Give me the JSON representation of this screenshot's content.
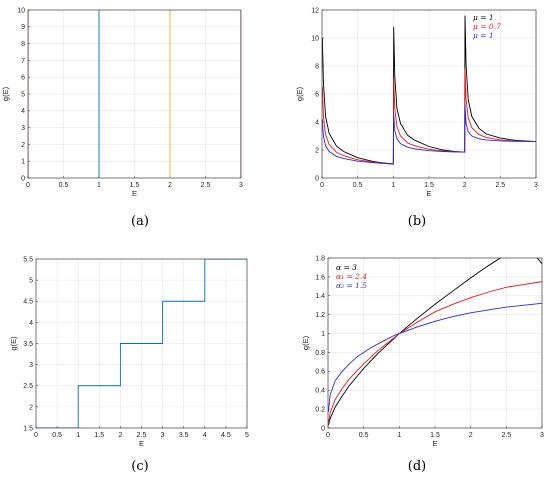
{
  "charts": [
    {
      "label_text": "(a)"
    },
    {
      "label_text": "(b)"
    },
    {
      "label_text": "(c)"
    },
    {
      "label_text": "(d)"
    }
  ],
  "chart_data": [
    {
      "type": "line",
      "panel": "(a)",
      "title": "",
      "xlabel": "E",
      "ylabel": "g(E)",
      "xlim": [
        0,
        3
      ],
      "ylim": [
        0,
        10
      ],
      "xticks": [
        "0",
        "0.5",
        "1",
        "1.5",
        "2",
        "2.5",
        "3"
      ],
      "yticks": [
        "0",
        "1",
        "2",
        "3",
        "4",
        "5",
        "6",
        "7",
        "8",
        "9",
        "10"
      ],
      "grid": true,
      "series": [
        {
          "color": "#d95319",
          "x": [
            0,
            0
          ],
          "y": [
            0,
            10
          ]
        },
        {
          "color": "#0072bd",
          "x": [
            1,
            1
          ],
          "y": [
            0,
            10
          ]
        },
        {
          "color": "#edb120",
          "x": [
            2,
            2
          ],
          "y": [
            0,
            10
          ]
        },
        {
          "color": "#7e2f8e",
          "x": [
            3,
            3
          ],
          "y": [
            0,
            10
          ]
        }
      ]
    },
    {
      "type": "line",
      "panel": "(b)",
      "title": "",
      "xlabel": "E",
      "ylabel": "g(E)",
      "xlim": [
        0,
        3
      ],
      "ylim": [
        0,
        12
      ],
      "xticks": [
        "0",
        "0.5",
        "1",
        "1.5",
        "2",
        "2.5",
        "3"
      ],
      "yticks": [
        "0",
        "2",
        "4",
        "6",
        "8",
        "10",
        "12"
      ],
      "grid": true,
      "legend_position": "top-right",
      "series": [
        {
          "name": "μ = 1",
          "color": "#000000",
          "x": [
            0.005,
            0.02,
            0.05,
            0.1,
            0.2,
            0.3,
            0.5,
            0.7,
            0.85,
            1.0,
            1.005,
            1.02,
            1.05,
            1.1,
            1.2,
            1.3,
            1.5,
            1.7,
            1.85,
            2.0,
            2.005,
            2.02,
            2.05,
            2.1,
            2.2,
            2.3,
            2.5,
            2.7,
            2.85,
            3.0
          ],
          "y": [
            10.0,
            6.8,
            4.4,
            3.2,
            2.3,
            1.9,
            1.45,
            1.2,
            1.08,
            1.0,
            10.8,
            7.3,
            5.0,
            3.9,
            3.05,
            2.7,
            2.25,
            2.0,
            1.9,
            1.85,
            11.6,
            8.0,
            5.6,
            4.4,
            3.55,
            3.15,
            2.85,
            2.7,
            2.65,
            2.6
          ]
        },
        {
          "name": "μ = 0.7",
          "color": "#e41a1c",
          "x": [
            0.005,
            0.02,
            0.05,
            0.1,
            0.2,
            0.3,
            0.5,
            0.7,
            0.85,
            1.0,
            1.005,
            1.02,
            1.05,
            1.1,
            1.2,
            1.3,
            1.5,
            1.7,
            1.85,
            2.0,
            2.005,
            2.02,
            2.05,
            2.1,
            2.2,
            2.3,
            2.5,
            2.7,
            2.85,
            3.0
          ],
          "y": [
            6.5,
            4.4,
            3.1,
            2.4,
            1.85,
            1.6,
            1.3,
            1.15,
            1.06,
            1.0,
            7.2,
            5.0,
            3.7,
            3.0,
            2.5,
            2.3,
            2.05,
            1.93,
            1.87,
            1.85,
            7.8,
            5.6,
            4.3,
            3.6,
            3.1,
            2.9,
            2.72,
            2.65,
            2.62,
            2.6
          ]
        },
        {
          "name": "μ = 1",
          "color": "#2b2bd9",
          "x": [
            0.005,
            0.02,
            0.05,
            0.1,
            0.2,
            0.3,
            0.5,
            0.7,
            0.85,
            1.0,
            1.005,
            1.02,
            1.05,
            1.1,
            1.2,
            1.3,
            1.5,
            1.7,
            1.85,
            2.0,
            2.005,
            2.02,
            2.05,
            2.1,
            2.2,
            2.3,
            2.5,
            2.7,
            2.85,
            3.0
          ],
          "y": [
            4.2,
            3.0,
            2.3,
            1.9,
            1.55,
            1.4,
            1.2,
            1.1,
            1.04,
            1.0,
            4.6,
            3.4,
            2.8,
            2.45,
            2.2,
            2.08,
            1.95,
            1.89,
            1.86,
            1.85,
            5.2,
            3.9,
            3.3,
            3.0,
            2.8,
            2.72,
            2.65,
            2.62,
            2.61,
            2.6
          ]
        }
      ]
    },
    {
      "type": "line",
      "panel": "(c)",
      "title": "",
      "xlabel": "E",
      "ylabel": "g(E)",
      "xlim": [
        0,
        5
      ],
      "ylim": [
        1.5,
        5.5
      ],
      "xticks": [
        "0",
        "0.5",
        "1",
        "1.5",
        "2",
        "2.5",
        "3",
        "3.5",
        "4",
        "4.5",
        "5"
      ],
      "yticks": [
        "1.5",
        "2",
        "2.5",
        "3",
        "3.5",
        "4",
        "4.5",
        "5",
        "5.5"
      ],
      "grid": true,
      "series": [
        {
          "color": "#0072bd",
          "x": [
            0,
            1,
            1,
            2,
            2,
            3,
            3,
            4,
            4,
            5
          ],
          "y": [
            1.5,
            1.5,
            2.5,
            2.5,
            3.5,
            3.5,
            4.5,
            4.5,
            5.5,
            5.5
          ]
        }
      ]
    },
    {
      "type": "line",
      "panel": "(d)",
      "title": "",
      "xlabel": "E",
      "ylabel": "g(E)",
      "xlim": [
        0,
        3
      ],
      "ylim": [
        0,
        1.8
      ],
      "xticks": [
        "0",
        "0.5",
        "1",
        "1.5",
        "2",
        "2.5",
        "3"
      ],
      "yticks": [
        "0",
        "0.2",
        "0.4",
        "0.6",
        "0.8",
        "1",
        "1.2",
        "1.4",
        "1.6",
        "1.8"
      ],
      "grid": true,
      "legend_position": "top-left",
      "series": [
        {
          "name": "α = 3",
          "color": "#000000",
          "x": [
            0.005,
            0.03,
            0.1,
            0.2,
            0.3,
            0.4,
            0.5,
            0.6,
            0.7,
            0.8,
            0.9,
            1.0,
            1.25,
            1.5,
            1.75,
            2.0,
            2.25,
            2.5,
            2.75,
            3.0
          ],
          "y": [
            0.03,
            0.1,
            0.22,
            0.34,
            0.45,
            0.54,
            0.63,
            0.71,
            0.79,
            0.86,
            0.93,
            1.0,
            1.16,
            1.31,
            1.45,
            1.59,
            1.72,
            1.84,
            1.96,
            1.74
          ]
        },
        {
          "name": "α₁ = 2.4",
          "color": "#e41a1c",
          "x": [
            0.005,
            0.03,
            0.1,
            0.2,
            0.3,
            0.4,
            0.5,
            0.6,
            0.7,
            0.8,
            0.9,
            1.0,
            1.25,
            1.5,
            1.75,
            2.0,
            2.25,
            2.5,
            2.75,
            3.0
          ],
          "y": [
            0.05,
            0.16,
            0.3,
            0.42,
            0.52,
            0.6,
            0.68,
            0.75,
            0.82,
            0.88,
            0.94,
            1.0,
            1.12,
            1.23,
            1.31,
            1.38,
            1.44,
            1.49,
            1.52,
            1.55
          ]
        },
        {
          "name": "α₂ = 1.5",
          "color": "#2b2bd9",
          "x": [
            0.005,
            0.03,
            0.1,
            0.2,
            0.3,
            0.4,
            0.5,
            0.6,
            0.7,
            0.8,
            0.9,
            1.0,
            1.25,
            1.5,
            1.75,
            2.0,
            2.25,
            2.5,
            2.75,
            3.0
          ],
          "y": [
            0.17,
            0.35,
            0.5,
            0.6,
            0.68,
            0.75,
            0.8,
            0.85,
            0.89,
            0.93,
            0.97,
            1.0,
            1.07,
            1.13,
            1.18,
            1.22,
            1.25,
            1.28,
            1.3,
            1.32
          ]
        }
      ]
    }
  ]
}
